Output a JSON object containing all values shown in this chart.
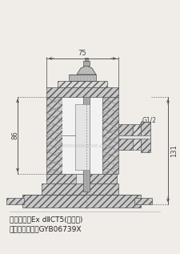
{
  "bg_color": "#f0ede8",
  "line_color": "#555555",
  "dark_line": "#333333",
  "hatch_bg": "#c8c8c8",
  "hatch_bg2": "#d8d8d8",
  "inner_bg": "#e8e8e8",
  "dim_color": "#444444",
  "watermark": "solenoidvalve.com",
  "watermark_color": "#b8b8b0",
  "dim_75": "75",
  "dim_86": "86",
  "dim_131": "131",
  "dim_G12": "G1/2",
  "label1": "防爆标志：Ex dⅡCT5(含氢气)",
  "label2": "防爆合格证号：GYB06739X",
  "label_fontsize": 6.5
}
